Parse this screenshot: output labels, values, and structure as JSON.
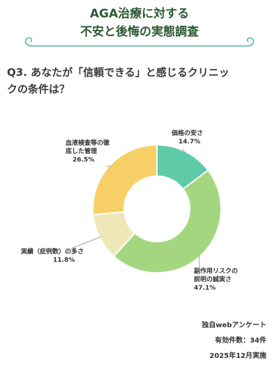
{
  "header": {
    "title_line1": "AGA治療に対する",
    "title_line2": "不安と後悔の実態調査",
    "accent_color": "#2d5a34",
    "ornament_color": "#4fb8a0"
  },
  "question": {
    "line1": "Q3. あなたが「信頼できる」と感じるクリニッ",
    "line2": "クの条件は？"
  },
  "chart_data": {
    "type": "pie",
    "donut": true,
    "slices": [
      {
        "label_line1": "価格の安さ",
        "label_line2": "",
        "value": 14.7,
        "value_label": "14.7%",
        "color": "#5fcaa8"
      },
      {
        "label_line1": "副作用リスクの",
        "label_line2": "説明の誠実さ",
        "value": 47.1,
        "value_label": "47.1%",
        "color": "#a4d67f"
      },
      {
        "label_line1": "実績（症例数）の多さ",
        "label_line2": "",
        "value": 11.8,
        "value_label": "11.8%",
        "color": "#efe7b6"
      },
      {
        "label_line1": "血液検査等の徹",
        "label_line2": "底した管理",
        "value": 26.5,
        "value_label": "26.5%",
        "color": "#f6d066"
      }
    ]
  },
  "footer": {
    "source": "独自webアンケート",
    "count": "有効件数：34件",
    "date": "2025年12月実施"
  }
}
